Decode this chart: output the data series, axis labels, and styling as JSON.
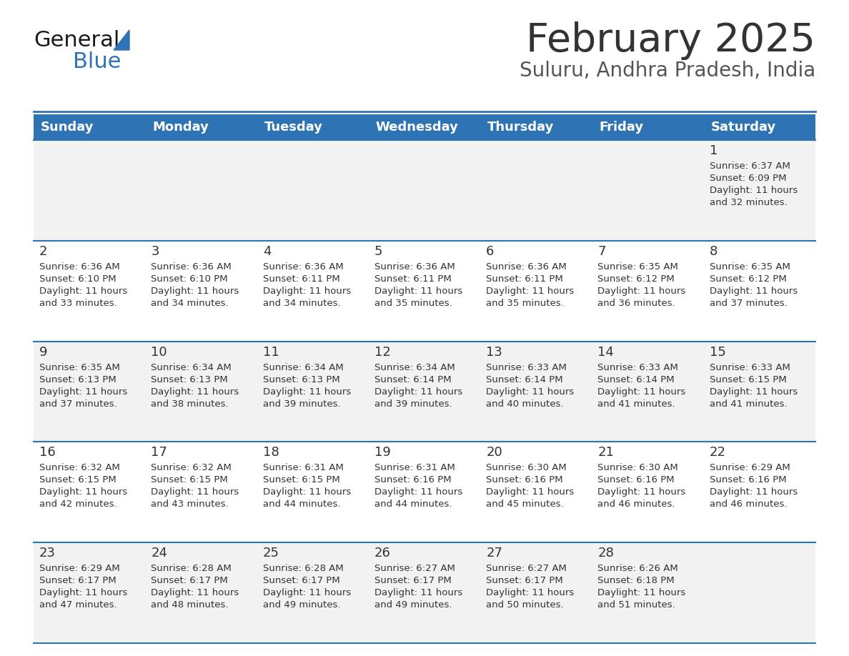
{
  "title": "February 2025",
  "subtitle": "Suluru, Andhra Pradesh, India",
  "days_of_week": [
    "Sunday",
    "Monday",
    "Tuesday",
    "Wednesday",
    "Thursday",
    "Friday",
    "Saturday"
  ],
  "header_bg": "#2E74B5",
  "header_text": "#FFFFFF",
  "cell_bg_odd": "#F2F2F2",
  "cell_bg_even": "#FFFFFF",
  "divider_color": "#2E74B5",
  "text_color": "#333333",
  "title_color": "#333333",
  "subtitle_color": "#555555",
  "calendar": [
    [
      null,
      null,
      null,
      null,
      null,
      null,
      {
        "day": 1,
        "sunrise": "6:37 AM",
        "sunset": "6:09 PM",
        "daylight": "11 hours and 32 minutes."
      }
    ],
    [
      {
        "day": 2,
        "sunrise": "6:36 AM",
        "sunset": "6:10 PM",
        "daylight": "11 hours and 33 minutes."
      },
      {
        "day": 3,
        "sunrise": "6:36 AM",
        "sunset": "6:10 PM",
        "daylight": "11 hours and 34 minutes."
      },
      {
        "day": 4,
        "sunrise": "6:36 AM",
        "sunset": "6:11 PM",
        "daylight": "11 hours and 34 minutes."
      },
      {
        "day": 5,
        "sunrise": "6:36 AM",
        "sunset": "6:11 PM",
        "daylight": "11 hours and 35 minutes."
      },
      {
        "day": 6,
        "sunrise": "6:36 AM",
        "sunset": "6:11 PM",
        "daylight": "11 hours and 35 minutes."
      },
      {
        "day": 7,
        "sunrise": "6:35 AM",
        "sunset": "6:12 PM",
        "daylight": "11 hours and 36 minutes."
      },
      {
        "day": 8,
        "sunrise": "6:35 AM",
        "sunset": "6:12 PM",
        "daylight": "11 hours and 37 minutes."
      }
    ],
    [
      {
        "day": 9,
        "sunrise": "6:35 AM",
        "sunset": "6:13 PM",
        "daylight": "11 hours and 37 minutes."
      },
      {
        "day": 10,
        "sunrise": "6:34 AM",
        "sunset": "6:13 PM",
        "daylight": "11 hours and 38 minutes."
      },
      {
        "day": 11,
        "sunrise": "6:34 AM",
        "sunset": "6:13 PM",
        "daylight": "11 hours and 39 minutes."
      },
      {
        "day": 12,
        "sunrise": "6:34 AM",
        "sunset": "6:14 PM",
        "daylight": "11 hours and 39 minutes."
      },
      {
        "day": 13,
        "sunrise": "6:33 AM",
        "sunset": "6:14 PM",
        "daylight": "11 hours and 40 minutes."
      },
      {
        "day": 14,
        "sunrise": "6:33 AM",
        "sunset": "6:14 PM",
        "daylight": "11 hours and 41 minutes."
      },
      {
        "day": 15,
        "sunrise": "6:33 AM",
        "sunset": "6:15 PM",
        "daylight": "11 hours and 41 minutes."
      }
    ],
    [
      {
        "day": 16,
        "sunrise": "6:32 AM",
        "sunset": "6:15 PM",
        "daylight": "11 hours and 42 minutes."
      },
      {
        "day": 17,
        "sunrise": "6:32 AM",
        "sunset": "6:15 PM",
        "daylight": "11 hours and 43 minutes."
      },
      {
        "day": 18,
        "sunrise": "6:31 AM",
        "sunset": "6:15 PM",
        "daylight": "11 hours and 44 minutes."
      },
      {
        "day": 19,
        "sunrise": "6:31 AM",
        "sunset": "6:16 PM",
        "daylight": "11 hours and 44 minutes."
      },
      {
        "day": 20,
        "sunrise": "6:30 AM",
        "sunset": "6:16 PM",
        "daylight": "11 hours and 45 minutes."
      },
      {
        "day": 21,
        "sunrise": "6:30 AM",
        "sunset": "6:16 PM",
        "daylight": "11 hours and 46 minutes."
      },
      {
        "day": 22,
        "sunrise": "6:29 AM",
        "sunset": "6:16 PM",
        "daylight": "11 hours and 46 minutes."
      }
    ],
    [
      {
        "day": 23,
        "sunrise": "6:29 AM",
        "sunset": "6:17 PM",
        "daylight": "11 hours and 47 minutes."
      },
      {
        "day": 24,
        "sunrise": "6:28 AM",
        "sunset": "6:17 PM",
        "daylight": "11 hours and 48 minutes."
      },
      {
        "day": 25,
        "sunrise": "6:28 AM",
        "sunset": "6:17 PM",
        "daylight": "11 hours and 49 minutes."
      },
      {
        "day": 26,
        "sunrise": "6:27 AM",
        "sunset": "6:17 PM",
        "daylight": "11 hours and 49 minutes."
      },
      {
        "day": 27,
        "sunrise": "6:27 AM",
        "sunset": "6:17 PM",
        "daylight": "11 hours and 50 minutes."
      },
      {
        "day": 28,
        "sunrise": "6:26 AM",
        "sunset": "6:18 PM",
        "daylight": "11 hours and 51 minutes."
      },
      null
    ]
  ],
  "logo_text_general": "General",
  "logo_text_blue": "Blue",
  "logo_color_general": "#1a1a1a",
  "logo_color_blue": "#2E74B5",
  "logo_triangle_color": "#2E74B5"
}
